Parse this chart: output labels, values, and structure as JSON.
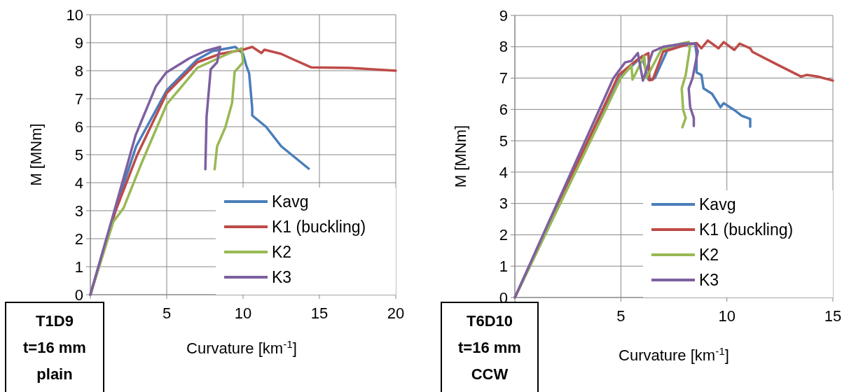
{
  "chart_data": [
    {
      "type": "line",
      "xlabel": "Curvature [km$^{-1}$]",
      "ylabel": "M [MNm]",
      "xlim": [
        0,
        20
      ],
      "ylim": [
        0,
        10
      ],
      "xticks": [
        {
          "value": 0,
          "label": null
        },
        5,
        10,
        15,
        20
      ],
      "yticks": [
        0,
        1,
        2,
        3,
        4,
        5,
        6,
        7,
        8,
        9,
        10
      ],
      "grid": true,
      "legend": "bottom right",
      "line_style": "solid",
      "marker": "none",
      "annotations": [
        "T1D9\nt=16 mm\nplain"
      ],
      "series": [
        {
          "name": "Kavg",
          "color": "#4a7ebb",
          "x": [
            0,
            1.6,
            3.0,
            5.0,
            7.0,
            8.0,
            9.5,
            10.0,
            10.2,
            10.4,
            10.6,
            10.6,
            11.5,
            12.5,
            13.4,
            14.3
          ],
          "values": [
            0,
            3.0,
            5.3,
            7.3,
            8.4,
            8.7,
            8.85,
            8.6,
            8.2,
            7.9,
            6.65,
            6.4,
            6.0,
            5.3,
            4.9,
            4.5
          ]
        },
        {
          "name": "K1 (buckling)",
          "color": "#be4b48",
          "x": [
            0,
            1.65,
            3.05,
            5.0,
            7.0,
            8.5,
            10.0,
            10.6,
            11.2,
            11.4,
            12.5,
            13.3,
            14.45,
            17.0,
            20.0
          ],
          "values": [
            0,
            2.99,
            4.97,
            7.2,
            8.3,
            8.6,
            8.75,
            8.85,
            8.63,
            8.75,
            8.6,
            8.4,
            8.12,
            8.1,
            8.0
          ]
        },
        {
          "name": "K2",
          "color": "#98b954",
          "x": [
            0,
            1.5,
            2.17,
            3.3,
            5.0,
            7.0,
            9.0,
            9.9,
            10.0,
            9.45,
            9.28,
            8.84,
            8.3,
            8.14
          ],
          "values": [
            0,
            2.6,
            3.09,
            4.63,
            6.8,
            8.1,
            8.6,
            8.8,
            8.3,
            7.96,
            6.85,
            5.98,
            5.3,
            4.48
          ]
        },
        {
          "name": "K3",
          "color": "#7d60a0",
          "x": [
            0,
            1.47,
            2.96,
            4.28,
            4.96,
            6.5,
            7.5,
            8.5,
            8.3,
            7.88,
            7.61,
            7.53
          ],
          "values": [
            0,
            2.8,
            5.69,
            7.43,
            7.93,
            8.45,
            8.7,
            8.85,
            8.3,
            8.05,
            6.36,
            4.48
          ]
        }
      ]
    },
    {
      "type": "line",
      "xlabel": "Curvature [km$^{-1}$]",
      "ylabel": "M [MNm]",
      "xlim": [
        0,
        15
      ],
      "ylim": [
        0,
        9
      ],
      "xticks": [
        {
          "value": 0,
          "label": null
        },
        5,
        10,
        15
      ],
      "yticks": [
        0,
        1,
        2,
        3,
        4,
        5,
        6,
        7,
        8,
        9
      ],
      "grid": true,
      "legend": "bottom right",
      "line_style": "solid",
      "marker": "none",
      "annotations": [
        "T6D10\nt=16 mm\nCCW"
      ],
      "series": [
        {
          "name": "Kavg",
          "color": "#4a7ebb",
          "x": [
            0,
            5.0,
            6.0,
            6.3,
            6.6,
            7.2,
            8.0,
            8.5,
            8.57,
            8.57,
            8.8,
            8.9,
            9.3,
            9.7,
            9.85,
            10.35,
            10.7,
            11.1,
            11.1
          ],
          "values": [
            0,
            7.05,
            7.7,
            6.95,
            7.0,
            7.9,
            8.05,
            8.1,
            7.78,
            7.18,
            7.1,
            6.67,
            6.5,
            6.07,
            6.2,
            5.98,
            5.8,
            5.7,
            5.45
          ]
        },
        {
          "name": "K1 (buckling)",
          "color": "#be4b48",
          "x": [
            0,
            4.9,
            5.8,
            6.3,
            6.35,
            6.5,
            7.0,
            7.3,
            8.0,
            8.57,
            8.8,
            9.1,
            9.6,
            9.85,
            10.35,
            10.6,
            11.1,
            11.2,
            12.35,
            13.5,
            13.76,
            14.27,
            15.0
          ],
          "values": [
            0,
            7.1,
            7.6,
            7.8,
            6.93,
            6.95,
            7.85,
            7.9,
            8.05,
            8.12,
            7.95,
            8.2,
            7.95,
            8.15,
            7.9,
            8.1,
            7.95,
            7.84,
            7.44,
            7.05,
            7.1,
            7.05,
            6.92
          ]
        },
        {
          "name": "K2",
          "color": "#98b954",
          "x": [
            0,
            5.0,
            5.5,
            5.55,
            6.1,
            6.2,
            6.9,
            7.5,
            8.2,
            8.25,
            8.06,
            7.87,
            7.94,
            8.06,
            7.9
          ],
          "values": [
            0,
            7.0,
            7.4,
            6.95,
            7.7,
            7.0,
            7.9,
            8.05,
            8.15,
            7.95,
            7.1,
            6.67,
            5.98,
            5.73,
            5.43
          ]
        },
        {
          "name": "K3",
          "color": "#7d60a0",
          "x": [
            0,
            4.65,
            5.2,
            5.5,
            5.8,
            6.04,
            6.5,
            7.0,
            8.0,
            8.5,
            8.63,
            8.38,
            8.2,
            8.27,
            8.44,
            8.44
          ],
          "values": [
            0,
            7.0,
            7.5,
            7.55,
            7.8,
            6.92,
            7.85,
            8.0,
            8.1,
            8.1,
            7.86,
            7.0,
            6.67,
            6.07,
            5.73,
            5.47
          ]
        }
      ]
    }
  ]
}
